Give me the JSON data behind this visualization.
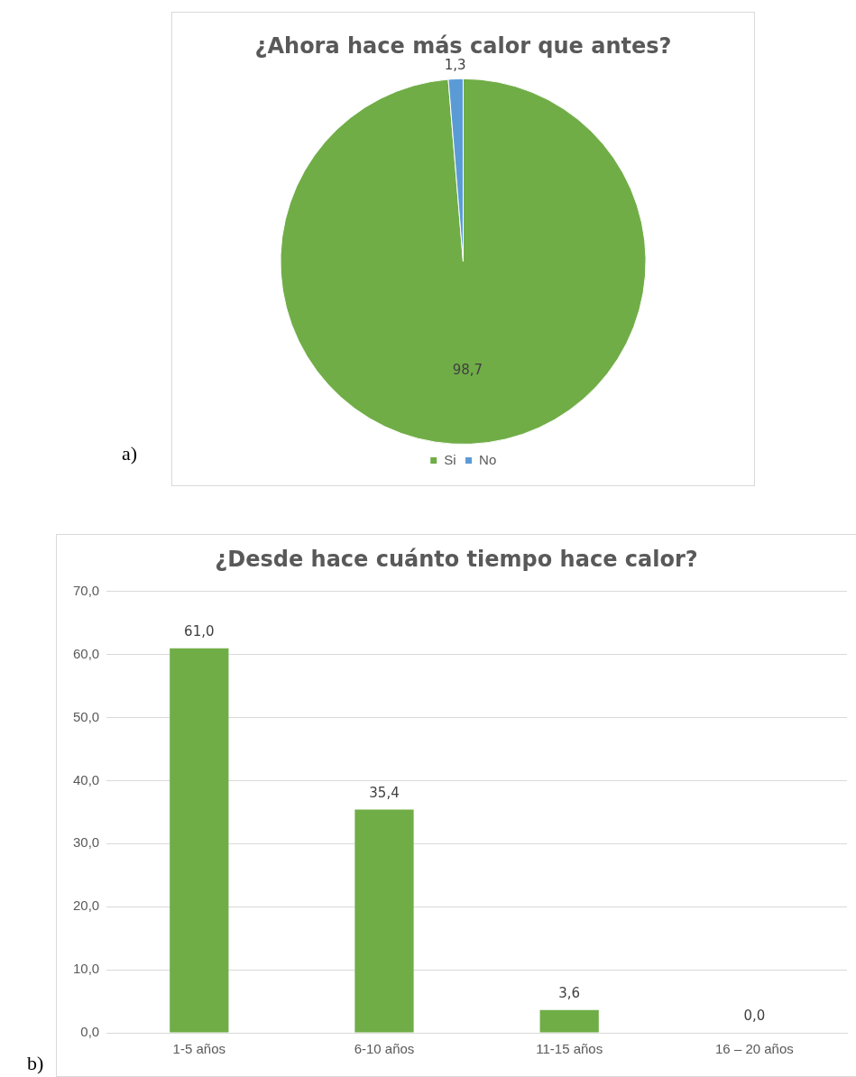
{
  "chart_data": [
    {
      "type": "pie",
      "title": "¿Ahora hace más calor que antes?",
      "categories": [
        "Si",
        "No"
      ],
      "values": [
        98.7,
        1.3
      ],
      "colors": [
        "#70ad47",
        "#5b9bd5"
      ],
      "value_labels": [
        "98,7",
        "1,3"
      ],
      "legend": "bottom",
      "annotations": [
        "a)"
      ]
    },
    {
      "type": "bar",
      "title": "¿Desde hace cuánto tiempo hace calor?",
      "categories": [
        "1-5 años",
        "6-10 años",
        "11-15 años",
        "16 – 20 años"
      ],
      "values": [
        61.0,
        35.4,
        3.6,
        0.0
      ],
      "color": "#70ad47",
      "value_labels": [
        "61,0",
        "35,4",
        "3,6",
        "0,0"
      ],
      "ylim": [
        0,
        70
      ],
      "yticks": [
        {
          "value": 0,
          "label": "0,0"
        },
        {
          "value": 10,
          "label": "10,0"
        },
        {
          "value": 20,
          "label": "20,0"
        },
        {
          "value": 30,
          "label": "30,0"
        },
        {
          "value": 40,
          "label": "40,0"
        },
        {
          "value": 50,
          "label": "50,0"
        },
        {
          "value": 60,
          "label": "60,0"
        },
        {
          "value": 70,
          "label": "70,0"
        }
      ],
      "grid": "y",
      "annotations": [
        "b)"
      ]
    }
  ]
}
